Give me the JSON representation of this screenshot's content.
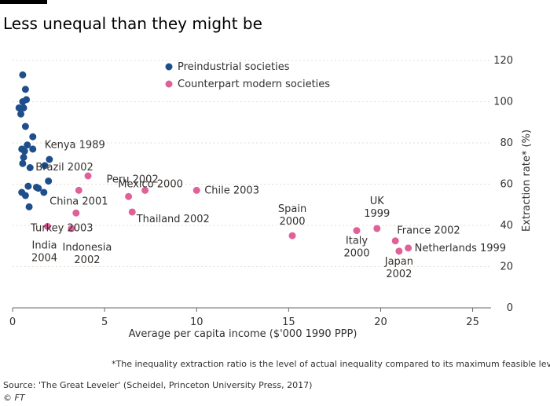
{
  "header": {
    "title": "Less unequal than they might be"
  },
  "footer": {
    "footnote": "*The inequality extraction ratio is the level of actual inequality compared to its maximum feasible level",
    "source": "Source: 'The Great Leveler' (Scheidel, Princeton University Press, 2017)",
    "copyright": "© FT"
  },
  "chart_data": {
    "type": "scatter",
    "xlabel": "Average per capita income ($'000 1990 PPP)",
    "ylabel": "Extraction rate* (%)",
    "xlim": [
      0,
      26
    ],
    "ylim": [
      0,
      120
    ],
    "xticks": [
      0,
      5,
      10,
      15,
      20,
      25
    ],
    "yticks": [
      0,
      20,
      40,
      60,
      80,
      100,
      120
    ],
    "grid": "horizontal",
    "legend_position": "top",
    "series": [
      {
        "name": "Preindustrial societies",
        "color": "#1e4f8a",
        "points": [
          {
            "x": 0.55,
            "y": 113
          },
          {
            "x": 0.7,
            "y": 106
          },
          {
            "x": 0.75,
            "y": 101
          },
          {
            "x": 0.55,
            "y": 100
          },
          {
            "x": 0.35,
            "y": 97
          },
          {
            "x": 0.6,
            "y": 97
          },
          {
            "x": 0.45,
            "y": 94
          },
          {
            "x": 0.7,
            "y": 88
          },
          {
            "x": 1.1,
            "y": 83
          },
          {
            "x": 0.8,
            "y": 79
          },
          {
            "x": 0.5,
            "y": 77
          },
          {
            "x": 0.65,
            "y": 76
          },
          {
            "x": 1.1,
            "y": 77
          },
          {
            "x": 0.6,
            "y": 73
          },
          {
            "x": 0.55,
            "y": 70
          },
          {
            "x": 0.95,
            "y": 68
          },
          {
            "x": 2.0,
            "y": 72
          },
          {
            "x": 1.75,
            "y": 69
          },
          {
            "x": 1.95,
            "y": 61.5
          },
          {
            "x": 0.85,
            "y": 59
          },
          {
            "x": 1.3,
            "y": 58.5
          },
          {
            "x": 1.4,
            "y": 58
          },
          {
            "x": 0.5,
            "y": 56
          },
          {
            "x": 1.7,
            "y": 56
          },
          {
            "x": 0.7,
            "y": 54.5
          },
          {
            "x": 0.9,
            "y": 49
          }
        ],
        "labels": [
          {
            "text": "Kenya 1989",
            "x": 1.1,
            "y": 79
          }
        ]
      },
      {
        "name": "Counterpart modern societies",
        "color": "#e0609a",
        "points": [
          {
            "label": "Brazil 2002",
            "x": 4.1,
            "y": 64
          },
          {
            "label": "China 2001",
            "x": 3.6,
            "y": 57
          },
          {
            "label": "India 2004",
            "x": 1.9,
            "y": 39.5
          },
          {
            "label": "Indonesia 2002",
            "x": 3.2,
            "y": 38.5
          },
          {
            "label": "Turkey 2003",
            "x": 3.45,
            "y": 46
          },
          {
            "label": "Peru 2002",
            "x": 7.2,
            "y": 57
          },
          {
            "label": "Mexico 2000",
            "x": 6.3,
            "y": 54
          },
          {
            "label": "Thailand 2002",
            "x": 6.5,
            "y": 46.5
          },
          {
            "label": "Chile 2003",
            "x": 10.0,
            "y": 57
          },
          {
            "label": "Spain 2000",
            "x": 15.2,
            "y": 35
          },
          {
            "label": "Italy 2000",
            "x": 18.7,
            "y": 37.5
          },
          {
            "label": "UK 1999",
            "x": 19.8,
            "y": 38.5
          },
          {
            "label": "France 2002",
            "x": 20.8,
            "y": 32.5
          },
          {
            "label": "Japan 2002",
            "x": 21.0,
            "y": 27.5
          },
          {
            "label": "Netherlands 1999",
            "x": 21.5,
            "y": 29
          }
        ]
      }
    ]
  }
}
